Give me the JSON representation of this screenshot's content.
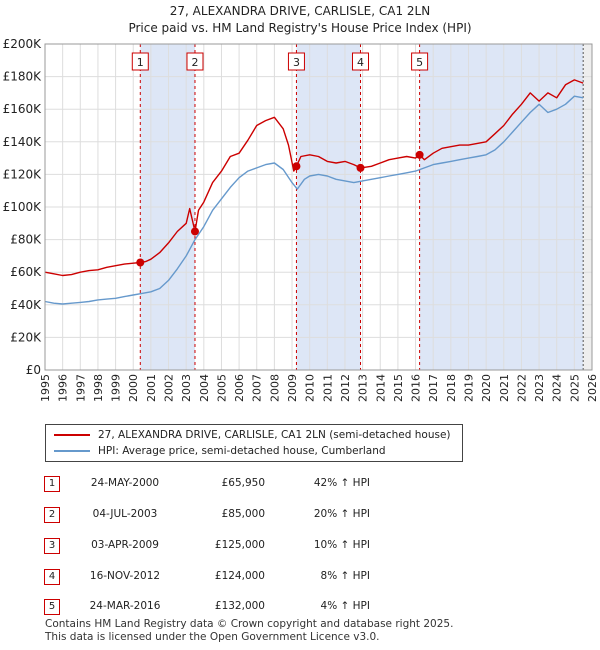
{
  "title": {
    "line1": "27, ALEXANDRA DRIVE, CARLISLE, CA1 2LN",
    "line2": "Price paid vs. HM Land Registry's House Price Index (HPI)"
  },
  "legend": {
    "property": "27, ALEXANDRA DRIVE, CARLISLE, CA1 2LN (semi-detached house)",
    "hpi": "HPI: Average price, semi-detached house, Cumberland"
  },
  "sales": [
    {
      "num": "1",
      "date": "24-MAY-2000",
      "price": "£65,950",
      "hpi": "42% ↑ HPI"
    },
    {
      "num": "2",
      "date": "04-JUL-2003",
      "price": "£85,000",
      "hpi": "20% ↑ HPI"
    },
    {
      "num": "3",
      "date": "03-APR-2009",
      "price": "£125,000",
      "hpi": "10% ↑ HPI"
    },
    {
      "num": "4",
      "date": "16-NOV-2012",
      "price": "£124,000",
      "hpi": "8% ↑ HPI"
    },
    {
      "num": "5",
      "date": "24-MAR-2016",
      "price": "£132,000",
      "hpi": "4% ↑ HPI"
    }
  ],
  "footer": {
    "line1": "Contains HM Land Registry data © Crown copyright and database right 2025.",
    "line2": "This data is licensed under the Open Government Licence v3.0."
  },
  "colors": {
    "property": "#cc0000",
    "hpi": "#6699cc",
    "shade": "#dde6f6",
    "grid": "#dddddd"
  },
  "chart_data": {
    "type": "line",
    "title": "27, ALEXANDRA DRIVE, CARLISLE, CA1 2LN — Price paid vs. HM Land Registry's House Price Index (HPI)",
    "xlabel": "",
    "ylabel": "",
    "xlim": [
      1995,
      2026
    ],
    "ylim": [
      0,
      200000
    ],
    "y_ticks": [
      {
        "value": 0,
        "label": "£0"
      },
      {
        "value": 20000,
        "label": "£20K"
      },
      {
        "value": 40000,
        "label": "£40K"
      },
      {
        "value": 60000,
        "label": "£60K"
      },
      {
        "value": 80000,
        "label": "£80K"
      },
      {
        "value": 100000,
        "label": "£100K"
      },
      {
        "value": 120000,
        "label": "£120K"
      },
      {
        "value": 140000,
        "label": "£140K"
      },
      {
        "value": 160000,
        "label": "£160K"
      },
      {
        "value": 180000,
        "label": "£180K"
      },
      {
        "value": 200000,
        "label": "£200K"
      }
    ],
    "x_ticks": [
      "1995",
      "1996",
      "1997",
      "1998",
      "1999",
      "2000",
      "2001",
      "2002",
      "2003",
      "2004",
      "2005",
      "2006",
      "2007",
      "2008",
      "2009",
      "2010",
      "2011",
      "2012",
      "2013",
      "2014",
      "2015",
      "2016",
      "2017",
      "2018",
      "2019",
      "2020",
      "2021",
      "2022",
      "2023",
      "2024",
      "2025",
      "2026"
    ],
    "grid": true,
    "shaded_ranges": [
      [
        2000.4,
        2003.5
      ],
      [
        2009.25,
        2012.88
      ],
      [
        2016.23,
        2025.5
      ]
    ],
    "markers": [
      {
        "label": "1",
        "x": 2000.4,
        "y": 65950
      },
      {
        "label": "2",
        "x": 2003.5,
        "y": 85000
      },
      {
        "label": "3",
        "x": 2009.25,
        "y": 125000
      },
      {
        "label": "4",
        "x": 2012.88,
        "y": 124000
      },
      {
        "label": "5",
        "x": 2016.23,
        "y": 132000
      }
    ],
    "data_end_x": 2025.5,
    "series": [
      {
        "name": "27, ALEXANDRA DRIVE, CARLISLE, CA1 2LN (semi-detached house)",
        "color": "#cc0000",
        "x": [
          1995,
          1995.5,
          1996,
          1996.5,
          1997,
          1997.5,
          1998,
          1998.5,
          1999,
          1999.5,
          2000,
          2000.4,
          2000.7,
          2001,
          2001.5,
          2002,
          2002.5,
          2003,
          2003.2,
          2003.5,
          2003.7,
          2004,
          2004.5,
          2005,
          2005.5,
          2006,
          2006.5,
          2007,
          2007.5,
          2008,
          2008.5,
          2008.8,
          2009.1,
          2009.25,
          2009.5,
          2010,
          2010.5,
          2011,
          2011.5,
          2012,
          2012.5,
          2012.88,
          2013.5,
          2014,
          2014.5,
          2015,
          2015.5,
          2016,
          2016.23,
          2016.5,
          2017,
          2017.5,
          2018,
          2018.5,
          2019,
          2019.5,
          2020,
          2020.5,
          2021,
          2021.5,
          2022,
          2022.5,
          2023,
          2023.5,
          2024,
          2024.5,
          2025,
          2025.5
        ],
        "values": [
          60000,
          59000,
          58000,
          58500,
          60000,
          61000,
          61500,
          63000,
          64000,
          65000,
          65500,
          65950,
          66500,
          68000,
          72000,
          78000,
          85000,
          90000,
          99000,
          85000,
          98000,
          103000,
          115000,
          122000,
          131000,
          133000,
          141000,
          150000,
          153000,
          155000,
          148000,
          138000,
          122000,
          125000,
          131000,
          132000,
          131000,
          128000,
          127000,
          128000,
          126000,
          124000,
          125000,
          127000,
          129000,
          130000,
          131000,
          130000,
          132000,
          129000,
          133000,
          136000,
          137000,
          138000,
          138000,
          139000,
          140000,
          145000,
          150000,
          157000,
          163000,
          170000,
          165000,
          170000,
          167000,
          175000,
          178000,
          176000
        ]
      },
      {
        "name": "HPI: Average price, semi-detached house, Cumberland",
        "color": "#6699cc",
        "x": [
          1995,
          1995.5,
          1996,
          1996.5,
          1997,
          1997.5,
          1998,
          1998.5,
          1999,
          1999.5,
          2000,
          2000.5,
          2001,
          2001.5,
          2002,
          2002.5,
          2003,
          2003.5,
          2004,
          2004.5,
          2005,
          2005.5,
          2006,
          2006.5,
          2007,
          2007.5,
          2008,
          2008.5,
          2009,
          2009.3,
          2009.7,
          2010,
          2010.5,
          2011,
          2011.5,
          2012,
          2012.5,
          2013,
          2013.5,
          2014,
          2014.5,
          2015,
          2015.5,
          2016,
          2016.5,
          2017,
          2017.5,
          2018,
          2018.5,
          2019,
          2019.5,
          2020,
          2020.5,
          2021,
          2021.5,
          2022,
          2022.5,
          2023,
          2023.5,
          2024,
          2024.5,
          2025,
          2025.5
        ],
        "values": [
          42000,
          41000,
          40500,
          41000,
          41500,
          42000,
          43000,
          43500,
          44000,
          45000,
          46000,
          47000,
          48000,
          50000,
          55000,
          62000,
          70000,
          80000,
          88000,
          98000,
          105000,
          112000,
          118000,
          122000,
          124000,
          126000,
          127000,
          123000,
          115000,
          111000,
          117000,
          119000,
          120000,
          119000,
          117000,
          116000,
          115000,
          116000,
          117000,
          118000,
          119000,
          120000,
          121000,
          122000,
          124000,
          126000,
          127000,
          128000,
          129000,
          130000,
          131000,
          132000,
          135000,
          140000,
          146000,
          152000,
          158000,
          163000,
          158000,
          160000,
          163000,
          168000,
          167000
        ]
      }
    ]
  }
}
